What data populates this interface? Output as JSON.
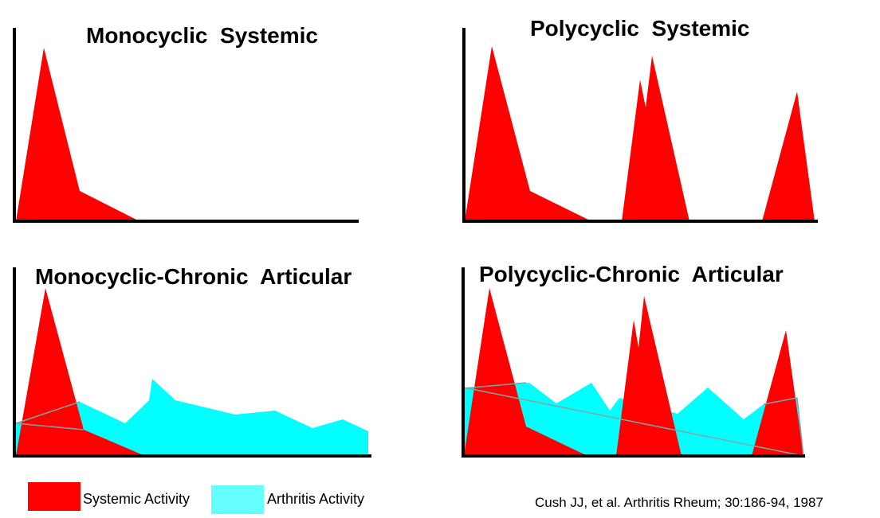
{
  "panels": {
    "monocyclic_systemic": {
      "title": "Monocyclic  Systemic"
    },
    "polycyclic_systemic": {
      "title": "Polycyclic  Systemic"
    },
    "monocyclic_chronic": {
      "title": "Monocyclic-Chronic  Articular"
    },
    "polycyclic_chronic": {
      "title": "Polycyclic-Chronic  Articular"
    }
  },
  "legend": {
    "systemic_label": "Systemic Activity",
    "arthritis_label": "Arthritis Activity"
  },
  "citation": "Cush JJ, et al. Arthritis Rheum; 30:186-94, 1987",
  "colors": {
    "systemic": "#ff0000",
    "arthritis": "#00ffff",
    "axis": "#000000",
    "thin_line": "#7fa6a6"
  }
}
